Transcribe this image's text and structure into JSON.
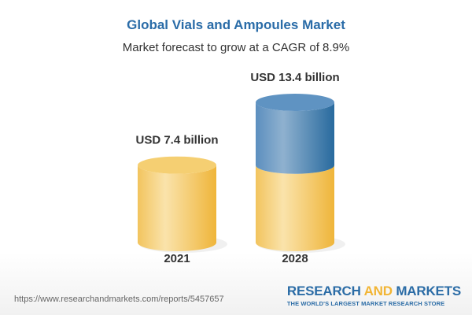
{
  "title": "Global Vials and Ampoules Market",
  "subtitle": "Market forecast to grow at a CAGR of 8.9%",
  "chart_data": {
    "type": "bar",
    "style": "3d-cylinder",
    "categories": [
      "2021",
      "2028"
    ],
    "values": [
      7.4,
      13.4
    ],
    "data_labels": [
      "USD 7.4 billion",
      "USD 13.4 billion"
    ],
    "unit": "USD billion",
    "ylim": [
      0,
      13.4
    ],
    "grid": false,
    "colors": {
      "base": "#f2c35a",
      "growth": "#4a80b3"
    }
  },
  "footer": {
    "url": "https://www.researchandmarkets.com/reports/5457657",
    "logo_part1": "RESEARCH ",
    "logo_part2": "AND",
    "logo_part3": " MARKETS",
    "tagline": "THE WORLD'S LARGEST MARKET RESEARCH STORE"
  }
}
